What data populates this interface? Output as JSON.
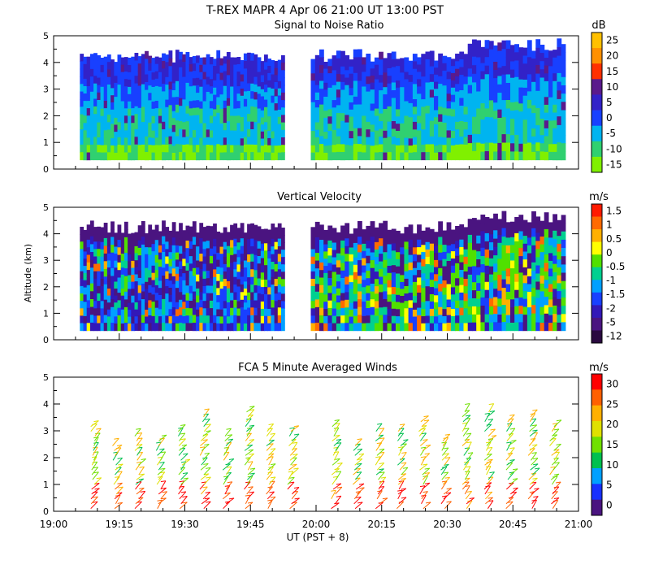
{
  "header": {
    "title": "T-REX   MAPR   4 Apr 06   21:00 UT   13:00   PST"
  },
  "chart_data": [
    {
      "type": "heatmap",
      "title": "Signal to Noise Ratio",
      "units": "dB",
      "ylabel": "",
      "ylim": [
        0,
        5
      ],
      "yticks": [
        "0",
        "1",
        "2",
        "3",
        "4",
        "5"
      ],
      "xlim": [
        19.0,
        21.0
      ],
      "colorbar_ticks": [
        "25",
        "20",
        "15",
        "10",
        "5",
        "0",
        "-5",
        "-10",
        "-15"
      ],
      "colors": [
        "#ffc000",
        "#ff9000",
        "#ff3000",
        "#5a1a8c",
        "#3222c8",
        "#1840ff",
        "#00b4f0",
        "#30d070",
        "#80f000"
      ]
    },
    {
      "type": "heatmap",
      "title": "Vertical Velocity",
      "units": "m/s",
      "ylabel": "Altitude (km)",
      "ylim": [
        0,
        5
      ],
      "yticks": [
        "0",
        "1",
        "2",
        "3",
        "4",
        "5"
      ],
      "xlim": [
        19.0,
        21.0
      ],
      "colorbar_ticks": [
        "1.5",
        "1",
        "0.5",
        "0",
        "-0.5",
        "-1",
        "-1.5",
        "-2",
        "-5",
        "-12"
      ],
      "colors": [
        "#ff1a00",
        "#ff6a00",
        "#ffb000",
        "#ffff00",
        "#50e000",
        "#00d090",
        "#00a0ff",
        "#1840ff",
        "#3218b8",
        "#4a1480",
        "#2a0a40"
      ]
    },
    {
      "type": "scatter",
      "title": "FCA 5 Minute Averaged Winds",
      "units": "m/s",
      "ylabel": "",
      "ylim": [
        0,
        5
      ],
      "yticks": [
        "0",
        "1",
        "2",
        "3",
        "4",
        "5"
      ],
      "xlim": [
        19.0,
        21.0
      ],
      "xticks": [
        "19:00",
        "19:15",
        "19:30",
        "19:45",
        "20:00",
        "20:15",
        "20:30",
        "20:45",
        "21:00"
      ],
      "xlabel": "UT  (PST + 8)",
      "colorbar_ticks": [
        "30",
        "25",
        "20",
        "15",
        "10",
        "5",
        "0"
      ],
      "colors": [
        "#ff0000",
        "#ff6000",
        "#ffb000",
        "#e0e000",
        "#70e000",
        "#00c050",
        "#00a0ff",
        "#1830ff",
        "#4a1480"
      ]
    }
  ]
}
